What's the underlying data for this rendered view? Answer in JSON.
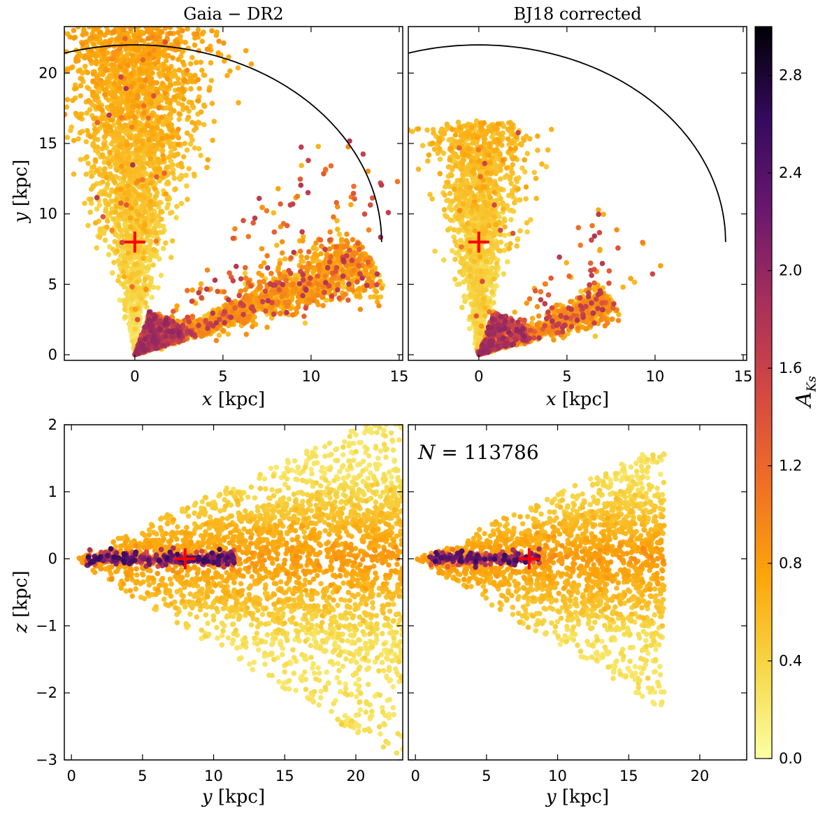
{
  "colors": {
    "colormap": "inferno_r",
    "stops": [
      "#fcffa4",
      "#f6d746",
      "#fca50a",
      "#f06f25",
      "#d44842",
      "#a62f5b",
      "#6a176e",
      "#340a5e",
      "#000004"
    ],
    "circle": "#000000",
    "sun_marker": "#ff0000"
  },
  "colorbar": {
    "label_main": "A",
    "label_sub": "Ks",
    "min": 0.0,
    "max": 3.0,
    "ticks": [
      0.0,
      0.4,
      0.8,
      1.2,
      1.6,
      2.0,
      2.4,
      2.8
    ],
    "tick_labels": [
      "0.0",
      "0.4",
      "0.8",
      "1.2",
      "1.6",
      "2.0",
      "2.4",
      "2.8"
    ]
  },
  "chart_data": [
    {
      "type": "scatter",
      "panel": "top-left",
      "title": "Gaia − DR2",
      "xlabel_var": "x",
      "xlabel_unit": " [kpc]",
      "ylabel_var": "y",
      "ylabel_unit": " [kpc]",
      "xlim": [
        -4,
        15.2
      ],
      "ylim": [
        -0.4,
        23.3
      ],
      "xticks": [
        0,
        5,
        10,
        15
      ],
      "xtick_labels": [
        "0",
        "5",
        "10",
        "15"
      ],
      "yticks": [
        0,
        5,
        10,
        15,
        20
      ],
      "ytick_labels": [
        "0",
        "5",
        "10",
        "15",
        "20"
      ],
      "circle": {
        "radius": 14,
        "center": [
          0,
          8
        ],
        "angle_range_deg": [
          0,
          180
        ]
      },
      "sun": [
        0,
        8
      ],
      "population": "gaia_xy"
    },
    {
      "type": "scatter",
      "panel": "top-right",
      "title": "BJ18 corrected",
      "xlabel_var": "x",
      "xlabel_unit": " [kpc]",
      "ylabel_var": "",
      "ylabel_unit": "",
      "xlim": [
        -4,
        15.2
      ],
      "ylim": [
        -0.4,
        23.3
      ],
      "xticks": [
        0,
        5,
        10,
        15
      ],
      "xtick_labels": [
        "0",
        "5",
        "10",
        "15"
      ],
      "yticks": [],
      "ytick_labels": [],
      "circle": {
        "radius": 14,
        "center": [
          0,
          8
        ],
        "angle_range_deg": [
          0,
          180
        ]
      },
      "sun": [
        0,
        8
      ],
      "population": "bj_xy"
    },
    {
      "type": "scatter",
      "panel": "bottom-left",
      "title": "",
      "xlabel_var": "y",
      "xlabel_unit": " [kpc]",
      "ylabel_var": "z",
      "ylabel_unit": " [kpc]",
      "xlim": [
        -0.5,
        23.3
      ],
      "ylim": [
        -3,
        2
      ],
      "xticks": [
        0,
        5,
        10,
        15,
        20
      ],
      "xtick_labels": [
        "0",
        "5",
        "10",
        "15",
        "20"
      ],
      "yticks": [
        -3,
        -2,
        -1,
        0,
        1,
        2
      ],
      "ytick_labels": [
        "−3",
        "−2",
        "−1",
        "0",
        "1",
        "2"
      ],
      "sun": [
        8,
        0
      ],
      "population": "gaia_yz"
    },
    {
      "type": "scatter",
      "panel": "bottom-right",
      "title": "",
      "annotation_var": "N",
      "annotation_value": " = 113786",
      "xlabel_var": "y",
      "xlabel_unit": " [kpc]",
      "ylabel_var": "",
      "ylabel_unit": "",
      "xlim": [
        -0.5,
        23.3
      ],
      "ylim": [
        -3,
        2
      ],
      "xticks": [
        0,
        5,
        10,
        15,
        20
      ],
      "xtick_labels": [
        "0",
        "5",
        "10",
        "15",
        "20"
      ],
      "yticks": [],
      "ytick_labels": [],
      "sun": [
        8,
        0
      ],
      "population": "bj_yz"
    }
  ]
}
